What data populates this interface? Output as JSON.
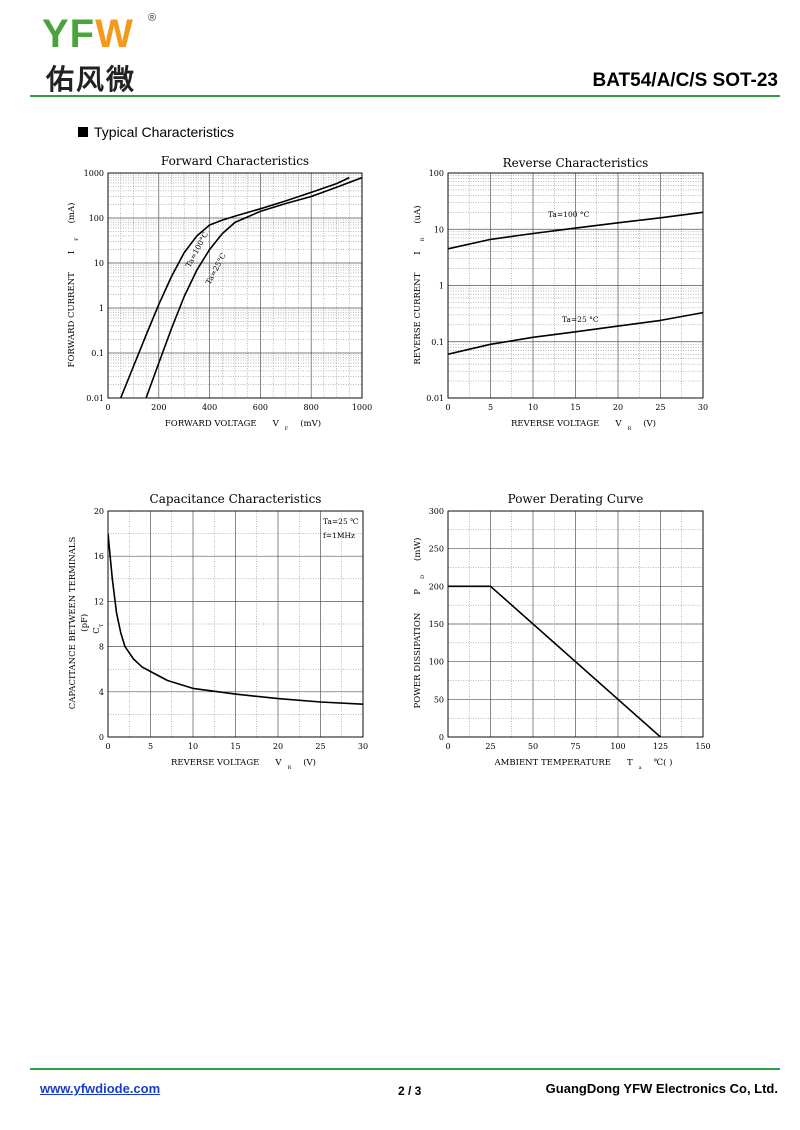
{
  "header": {
    "logo_brand": "YFW",
    "logo_reg": "®",
    "logo_cn": "佑风微",
    "part_number": "BAT54/A/C/S  SOT-23",
    "rule_color": "#2f9e44"
  },
  "section_title": "Typical Characteristics",
  "footer": {
    "link": "www.yfwdiode.com",
    "page": "2 / 3",
    "company": "GuangDong YFW Electronics Co, Ltd."
  },
  "chart_data": [
    {
      "id": "forward",
      "type": "line",
      "title": "Forward    Characteristics",
      "xlabel": {
        "main": "FORWARD VOLTAGE",
        "sym": "V",
        "sub": "F",
        "unit": "(mV)"
      },
      "ylabel": {
        "main": "FORWARD CURRENT",
        "sym": "I",
        "sub": "F",
        "unit": "(mA)"
      },
      "xlim": [
        0,
        1000
      ],
      "ylim": [
        0.01,
        1000
      ],
      "yscale": "log",
      "x_ticks": [
        "0",
        "200",
        "400",
        "600",
        "800",
        "1000"
      ],
      "y_ticks": [
        "0.01",
        "0.1",
        "1",
        "10",
        "100",
        "1000"
      ],
      "grid": true,
      "series": [
        {
          "name": "Ta=100°C",
          "x": [
            50,
            100,
            150,
            200,
            250,
            300,
            350,
            400,
            450,
            500,
            600,
            700,
            800,
            900,
            950
          ],
          "y": [
            0.01,
            0.05,
            0.25,
            1.2,
            5,
            17,
            40,
            70,
            90,
            110,
            160,
            240,
            370,
            580,
            790
          ]
        },
        {
          "name": "Ta=25°C",
          "x": [
            150,
            200,
            250,
            300,
            350,
            400,
            450,
            500,
            600,
            700,
            800,
            900,
            1000
          ],
          "y": [
            0.01,
            0.06,
            0.35,
            1.8,
            7,
            20,
            45,
            80,
            140,
            210,
            300,
            480,
            790
          ]
        }
      ]
    },
    {
      "id": "reverse",
      "type": "line",
      "title": "Reverse    Characteristics",
      "xlabel": {
        "main": "REVERSE VOLTAGE",
        "sym": "V",
        "sub": "R",
        "unit": "(V)"
      },
      "ylabel": {
        "main": "REVERSE CURRENT",
        "sym": "I",
        "sub": "R",
        "unit": "(uA)"
      },
      "xlim": [
        0,
        30
      ],
      "ylim": [
        0.01,
        100
      ],
      "yscale": "log",
      "x_ticks": [
        "0",
        "5",
        "10",
        "15",
        "20",
        "25",
        "30"
      ],
      "y_ticks": [
        "0.01",
        "0.1",
        "1",
        "10",
        "100"
      ],
      "grid": true,
      "series": [
        {
          "name": "Ta=100 °C",
          "x": [
            0,
            5,
            10,
            15,
            20,
            25,
            30
          ],
          "y": [
            4.5,
            6.6,
            8.4,
            10.5,
            13,
            16,
            20
          ]
        },
        {
          "name": "Ta=25 °C",
          "x": [
            0,
            5,
            10,
            15,
            20,
            25,
            30
          ],
          "y": [
            0.06,
            0.09,
            0.12,
            0.15,
            0.19,
            0.24,
            0.33
          ]
        }
      ]
    },
    {
      "id": "capacitance",
      "type": "line",
      "title": "Capacitance Characteristics",
      "xlabel": {
        "main": "REVERSE VOLTAGE",
        "sym": "V",
        "sub": "R",
        "unit": "(V)"
      },
      "ylabel": {
        "main": "CAPACITANCE BETWEEN TERMINALS",
        "sym": "C",
        "sub": "T",
        "unit": "(pF)"
      },
      "xlim": [
        0,
        30
      ],
      "ylim": [
        0,
        20
      ],
      "x_ticks": [
        "0",
        "5",
        "10",
        "15",
        "20",
        "25",
        "30"
      ],
      "y_ticks": [
        "0",
        "4",
        "8",
        "12",
        "16",
        "20"
      ],
      "grid": true,
      "annotations": [
        "Ta=25 ℃",
        "f=1MHz"
      ],
      "series": [
        {
          "name": "",
          "x": [
            0,
            0.5,
            1,
            1.5,
            2,
            3,
            4,
            5,
            7,
            10,
            15,
            20,
            25,
            30
          ],
          "y": [
            18,
            14,
            11,
            9.2,
            8,
            6.9,
            6.2,
            5.8,
            5.0,
            4.3,
            3.8,
            3.4,
            3.1,
            2.9
          ]
        }
      ]
    },
    {
      "id": "power",
      "type": "line",
      "title": "Power Derating Curve",
      "xlabel": {
        "main": "AMBIENT TEMPERATURE",
        "sym": "T",
        "sub": "a",
        "unit": "℃(  )"
      },
      "ylabel": {
        "main": "POWER DISSIPATION",
        "sym": "P",
        "sub": "D",
        "unit": "(mW)"
      },
      "xlim": [
        0,
        150
      ],
      "ylim": [
        0,
        300
      ],
      "x_ticks": [
        "0",
        "25",
        "50",
        "75",
        "100",
        "125",
        "150"
      ],
      "y_ticks": [
        "0",
        "50",
        "100",
        "150",
        "200",
        "250",
        "300"
      ],
      "grid": true,
      "series": [
        {
          "name": "",
          "x": [
            0,
            25,
            125
          ],
          "y": [
            200,
            200,
            0
          ]
        }
      ]
    }
  ]
}
